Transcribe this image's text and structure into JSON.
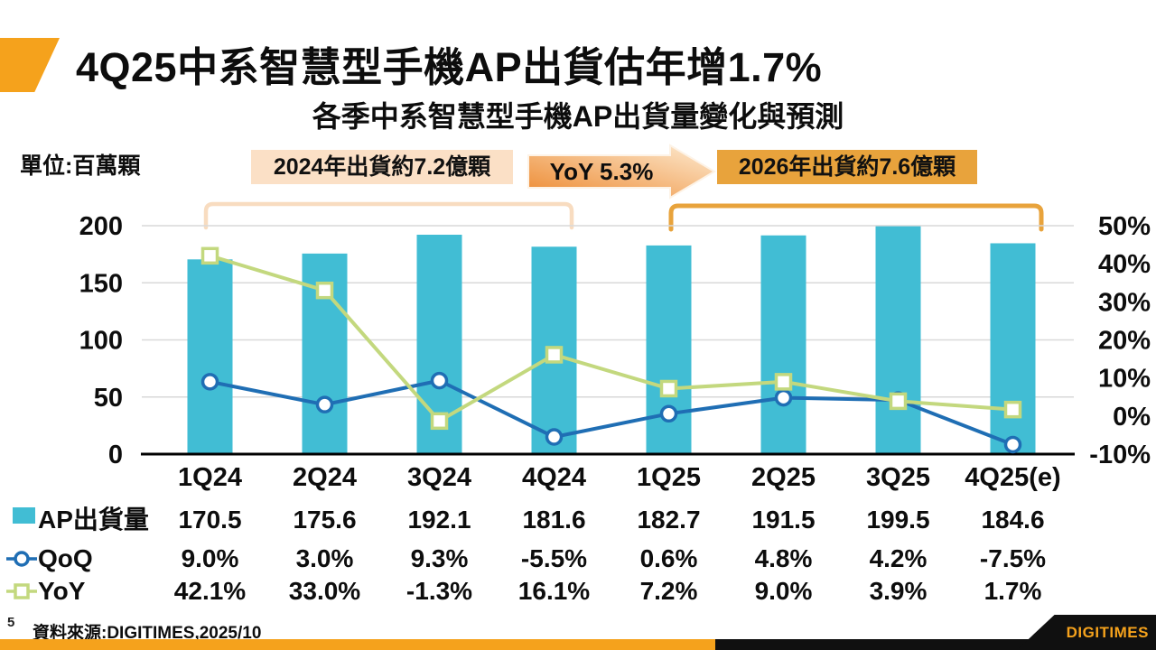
{
  "slide": {
    "title": "4Q25中系智慧型手機AP出貨估年增1.7%",
    "unit_label": "單位:百萬顆",
    "page_number": "5",
    "source": "資料來源:DIGITIMES,2025/10",
    "logo_text": "DIGITIMES"
  },
  "annotations": {
    "left_box": "2024年出貨約7.2億顆",
    "arrow_label": "YoY 5.3%",
    "right_box": "2026年出貨約7.6億顆"
  },
  "colors": {
    "accent_orange": "#F5A21C",
    "bar_teal": "#41BDD4",
    "qoq_blue": "#1F6EB4",
    "yoy_green": "#C3D87E",
    "peach_box_bg": "#FBE0C6",
    "gold_box_bg": "#E8A33C",
    "bracket_left": "#F8DCC0",
    "bracket_right": "#E8A33C",
    "arrow_gradient_start": "#ED8A31",
    "arrow_gradient_end": "#FDEBD2",
    "gridline": "#D9D9D9",
    "axis_black": "#000000",
    "strip_black": "#101010"
  },
  "chart_data": {
    "type": "combo (bar + line)",
    "title": "各季中系智慧型手機AP出貨量變化與預測",
    "unit": "百萬顆",
    "categories": [
      "1Q24",
      "2Q24",
      "3Q24",
      "4Q24",
      "1Q25",
      "2Q25",
      "3Q25",
      "4Q25(e)"
    ],
    "series": [
      {
        "name": "AP出貨量",
        "type": "bar",
        "axis": "left",
        "unit": "百萬顆",
        "marker": "none",
        "values": [
          170.5,
          175.6,
          192.1,
          181.6,
          182.7,
          191.5,
          199.5,
          184.6
        ]
      },
      {
        "name": "QoQ",
        "type": "line",
        "axis": "right",
        "unit": "%",
        "marker": "circle",
        "values": [
          9.0,
          3.0,
          9.3,
          -5.5,
          0.6,
          4.8,
          4.2,
          -7.5
        ]
      },
      {
        "name": "YoY",
        "type": "line",
        "axis": "right",
        "unit": "%",
        "marker": "square",
        "values": [
          42.1,
          33.0,
          -1.3,
          16.1,
          7.2,
          9.0,
          3.9,
          1.7
        ]
      }
    ],
    "left_axis": {
      "range": [
        0,
        200
      ],
      "ticks": [
        0,
        50,
        100,
        150,
        200
      ]
    },
    "right_axis": {
      "range": [
        -10,
        50
      ],
      "ticks": [
        -10,
        0,
        10,
        20,
        30,
        40,
        50
      ],
      "format": "percent"
    },
    "grid": true,
    "legend_position": "table-left"
  }
}
